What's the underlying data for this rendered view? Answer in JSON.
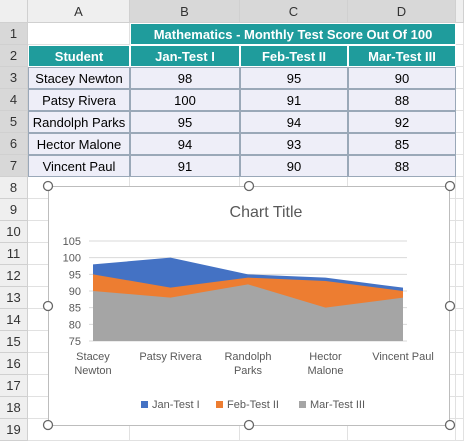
{
  "sheet": {
    "columns": [
      "A",
      "B",
      "C",
      "D"
    ],
    "row_numbers": [
      1,
      2,
      3,
      4,
      5,
      6,
      7,
      8,
      9,
      10,
      11,
      12,
      13,
      14,
      15,
      16,
      17,
      18,
      19
    ],
    "title": "Mathematics - Monthly Test Score Out Of 100",
    "header": [
      "Student",
      "Jan-Test I",
      "Feb-Test II",
      "Mar-Test III"
    ],
    "rows": [
      [
        "Stacey Newton",
        98,
        95,
        90
      ],
      [
        "Patsy Rivera",
        100,
        91,
        88
      ],
      [
        "Randolph Parks",
        95,
        94,
        92
      ],
      [
        "Hector Malone",
        94,
        93,
        85
      ],
      [
        "Vincent Paul",
        91,
        90,
        88
      ]
    ]
  },
  "chart_data": {
    "type": "area",
    "title": "Chart Title",
    "categories": [
      "Stacey Newton",
      "Patsy Rivera",
      "Randolph Parks",
      "Hector Malone",
      "Vincent Paul"
    ],
    "series": [
      {
        "name": "Jan-Test I",
        "color": "#4472c4",
        "values": [
          98,
          100,
          95,
          94,
          91
        ]
      },
      {
        "name": "Feb-Test II",
        "color": "#ed7d31",
        "values": [
          95,
          91,
          94,
          93,
          90
        ]
      },
      {
        "name": "Mar-Test III",
        "color": "#a5a5a5",
        "values": [
          90,
          88,
          92,
          85,
          88
        ]
      }
    ],
    "ylim": [
      75,
      105
    ],
    "yticks": [
      75,
      80,
      85,
      90,
      95,
      100,
      105
    ],
    "grid": true,
    "legend": "bottom"
  }
}
